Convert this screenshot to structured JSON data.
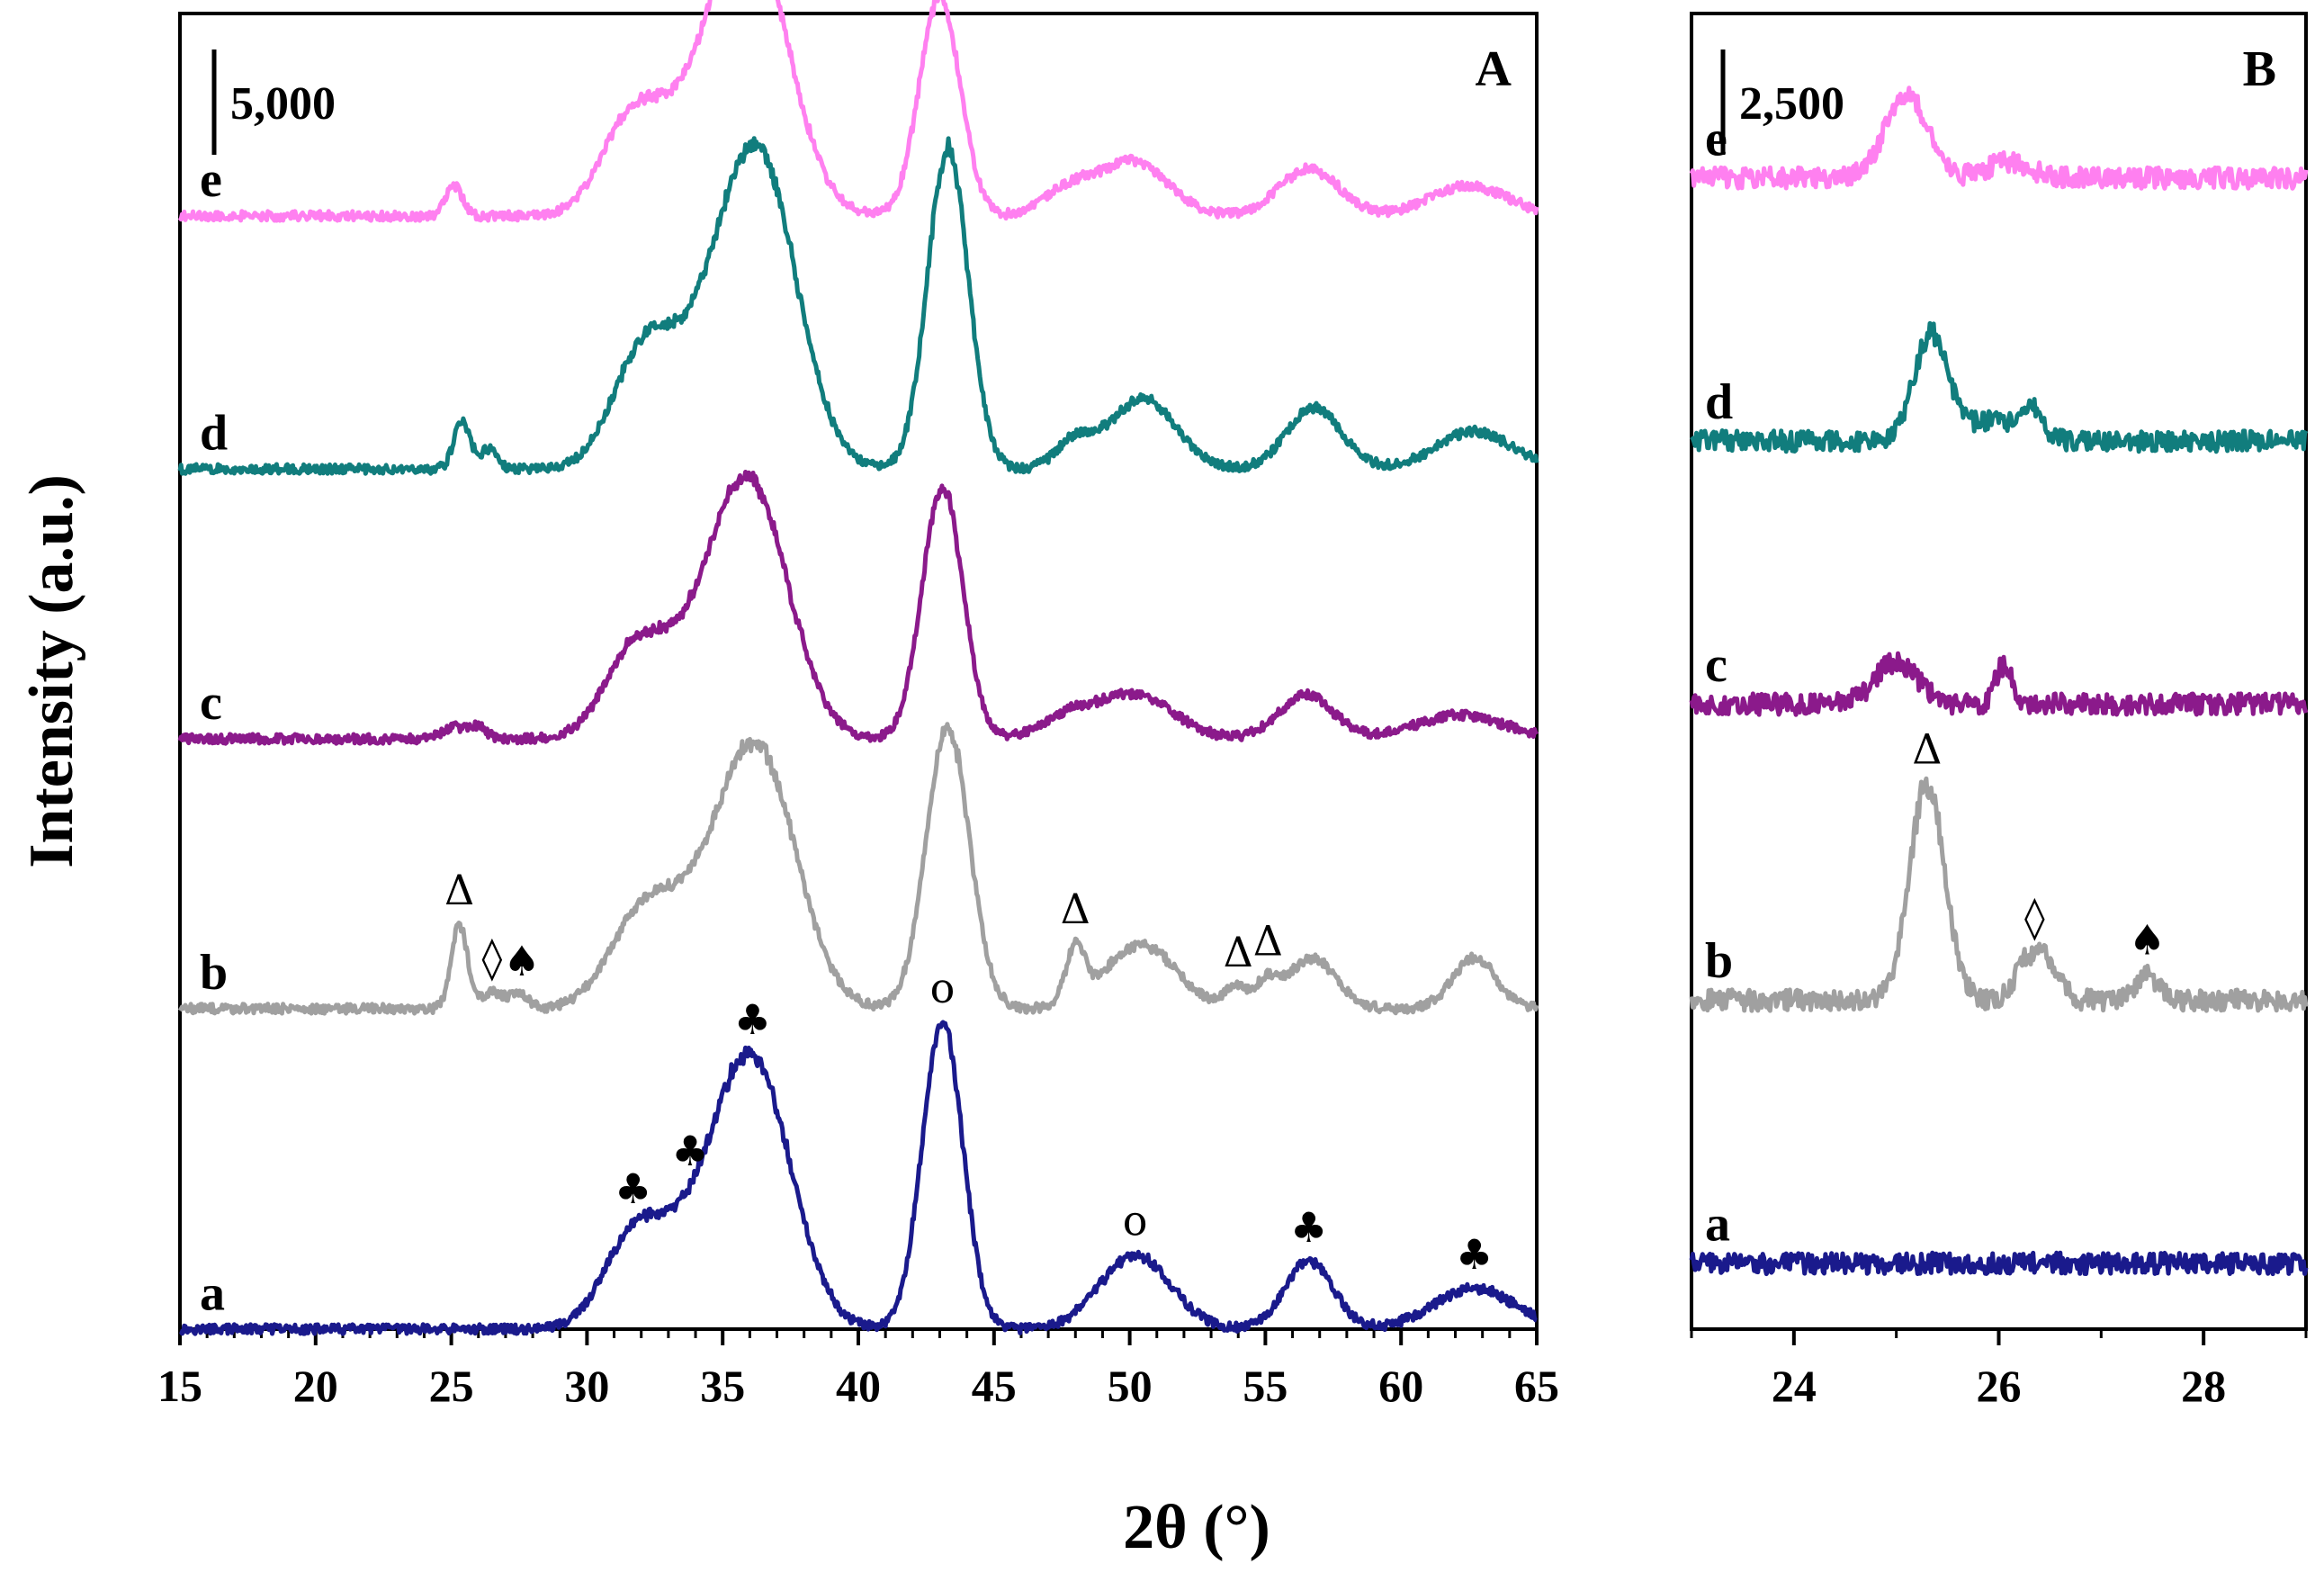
{
  "figure": {
    "x_axis_label": "2θ (°)",
    "y_axis_label": "Intensity (a.u.)"
  },
  "chart_data": [
    {
      "type": "line",
      "panel_label": "A",
      "scale_bar_label": "5,000",
      "scale_bar_value": 5000,
      "xlim": [
        15,
        65
      ],
      "xticks": [
        "15",
        "20",
        "25",
        "30",
        "35",
        "40",
        "45",
        "50",
        "55",
        "60",
        "65"
      ],
      "ylim": [
        0,
        39000
      ],
      "y_ticks_shown": false,
      "peak_width_deg": 0.45,
      "series": [
        {
          "name": "a",
          "label": "a",
          "color": "#1a1a8c",
          "offset": 0,
          "peaks": [
            [
              31.7,
              2200,
              1.1
            ],
            [
              34.2,
              2400,
              1.8
            ],
            [
              36.2,
              6800,
              1.4
            ],
            [
              43.1,
              9100,
              0.75
            ],
            [
              50.2,
              2200,
              1.3
            ],
            [
              56.6,
              2000,
              0.9
            ],
            [
              62.7,
              1200,
              1.5
            ]
          ]
        },
        {
          "name": "b",
          "label": "b",
          "color": "#a0a0a0",
          "offset": 9500,
          "peaks": [
            [
              25.3,
              2500,
              0.3
            ],
            [
              26.5,
              500,
              0.4
            ],
            [
              27.5,
              400,
              0.35
            ],
            [
              32.0,
              2300,
              1.2
            ],
            [
              34.6,
              2500,
              1.8
            ],
            [
              36.4,
              6300,
              1.4
            ],
            [
              43.3,
              8300,
              0.8
            ],
            [
              48.0,
              1600,
              0.35
            ],
            [
              50.4,
              1900,
              1.3
            ],
            [
              53.9,
              600,
              0.4
            ],
            [
              55.0,
              700,
              0.4
            ],
            [
              56.7,
              1500,
              0.9
            ],
            [
              62.7,
              1500,
              0.8
            ]
          ]
        },
        {
          "name": "c",
          "label": "c",
          "color": "#8b1a8b",
          "offset": 17500,
          "peaks": [
            [
              25.1,
              350,
              0.4
            ],
            [
              26.0,
              350,
              0.3
            ],
            [
              31.7,
              2100,
              1.1
            ],
            [
              34.3,
              2300,
              1.8
            ],
            [
              36.1,
              6300,
              1.4
            ],
            [
              43.1,
              7500,
              0.75
            ],
            [
              47.7,
              600,
              1.0
            ],
            [
              50.2,
              1300,
              1.4
            ],
            [
              56.5,
              1300,
              1.0
            ],
            [
              62.2,
              700,
              1.6
            ]
          ]
        },
        {
          "name": "d",
          "label": "d",
          "color": "#117d7d",
          "offset": 25500,
          "peaks": [
            [
              25.4,
              1400,
              0.3
            ],
            [
              26.4,
              600,
              0.3
            ],
            [
              32.0,
              2700,
              1.1
            ],
            [
              34.5,
              3000,
              1.8
            ],
            [
              36.4,
              7800,
              1.4
            ],
            [
              43.3,
              9500,
              0.75
            ],
            [
              48.0,
              800,
              0.7
            ],
            [
              50.5,
              2100,
              1.2
            ],
            [
              56.8,
              1800,
              1.0
            ],
            [
              62.7,
              1100,
              1.4
            ]
          ]
        },
        {
          "name": "e",
          "label": "e",
          "color": "#ff80f0",
          "offset": 33000,
          "peaks": [
            [
              25.1,
              900,
              0.3
            ],
            [
              31.6,
              2300,
              1.1
            ],
            [
              34.2,
              2600,
              1.8
            ],
            [
              36.1,
              7000,
              1.4
            ],
            [
              43.0,
              6500,
              0.75
            ],
            [
              47.7,
              700,
              0.9
            ],
            [
              50.1,
              1600,
              1.3
            ],
            [
              56.6,
              1400,
              1.1
            ],
            [
              62.5,
              900,
              1.4
            ]
          ]
        }
      ],
      "annotations": [
        {
          "symbol": "♣",
          "x": 31.7,
          "series": "a"
        },
        {
          "symbol": "♣",
          "x": 33.8,
          "series": "a"
        },
        {
          "symbol": "♣",
          "x": 36.1,
          "series": "a"
        },
        {
          "symbol": "o",
          "x": 43.1,
          "series": "a"
        },
        {
          "symbol": "o",
          "x": 50.2,
          "series": "a"
        },
        {
          "symbol": "♣",
          "x": 56.6,
          "series": "a"
        },
        {
          "symbol": "♣",
          "x": 62.7,
          "series": "a"
        },
        {
          "symbol": "Δ",
          "x": 25.3,
          "series": "b"
        },
        {
          "symbol": "◊",
          "x": 26.5,
          "series": "b"
        },
        {
          "symbol": "♠",
          "x": 27.6,
          "series": "b"
        },
        {
          "symbol": "Δ",
          "x": 48.0,
          "series": "b"
        },
        {
          "symbol": "Δ",
          "x": 54.0,
          "series": "b"
        },
        {
          "symbol": "Δ",
          "x": 55.1,
          "series": "b"
        }
      ]
    },
    {
      "type": "line",
      "panel_label": "B",
      "scale_bar_label": "2,500",
      "scale_bar_value": 2500,
      "xlim": [
        23,
        29
      ],
      "xticks": [
        "24",
        "26",
        "28"
      ],
      "ylim": [
        -1000,
        19000
      ],
      "y_ticks_shown": false,
      "peak_width_deg": 0.1,
      "series": [
        {
          "name": "a",
          "label": "a",
          "color": "#1a1a8c",
          "offset": 0,
          "peaks": []
        },
        {
          "name": "b",
          "label": "b",
          "color": "#a0a0a0",
          "offset": 4000,
          "peaks": [
            [
              25.3,
              3300,
              0.17
            ],
            [
              26.3,
              600,
              0.14
            ],
            [
              26.5,
              400,
              0.12
            ],
            [
              27.45,
              400,
              0.1
            ]
          ]
        },
        {
          "name": "c",
          "label": "c",
          "color": "#8b1a8b",
          "offset": 8500,
          "peaks": [
            [
              25.0,
              650,
              0.2
            ],
            [
              26.05,
              600,
              0.08
            ]
          ]
        },
        {
          "name": "d",
          "label": "d",
          "color": "#117d7d",
          "offset": 12500,
          "peaks": [
            [
              25.35,
              1650,
              0.17
            ],
            [
              26.3,
              550,
              0.12
            ],
            [
              25.9,
              300,
              0.15
            ]
          ]
        },
        {
          "name": "e",
          "label": "e",
          "color": "#ff80f0",
          "offset": 16500,
          "peaks": [
            [
              25.1,
              1300,
              0.2
            ],
            [
              26.1,
              250,
              0.2
            ]
          ]
        }
      ],
      "annotations": [
        {
          "symbol": "Δ",
          "x": 25.3,
          "series": "b"
        },
        {
          "symbol": "◊",
          "x": 26.35,
          "series": "b"
        },
        {
          "symbol": "♠",
          "x": 27.45,
          "series": "b"
        }
      ]
    }
  ]
}
